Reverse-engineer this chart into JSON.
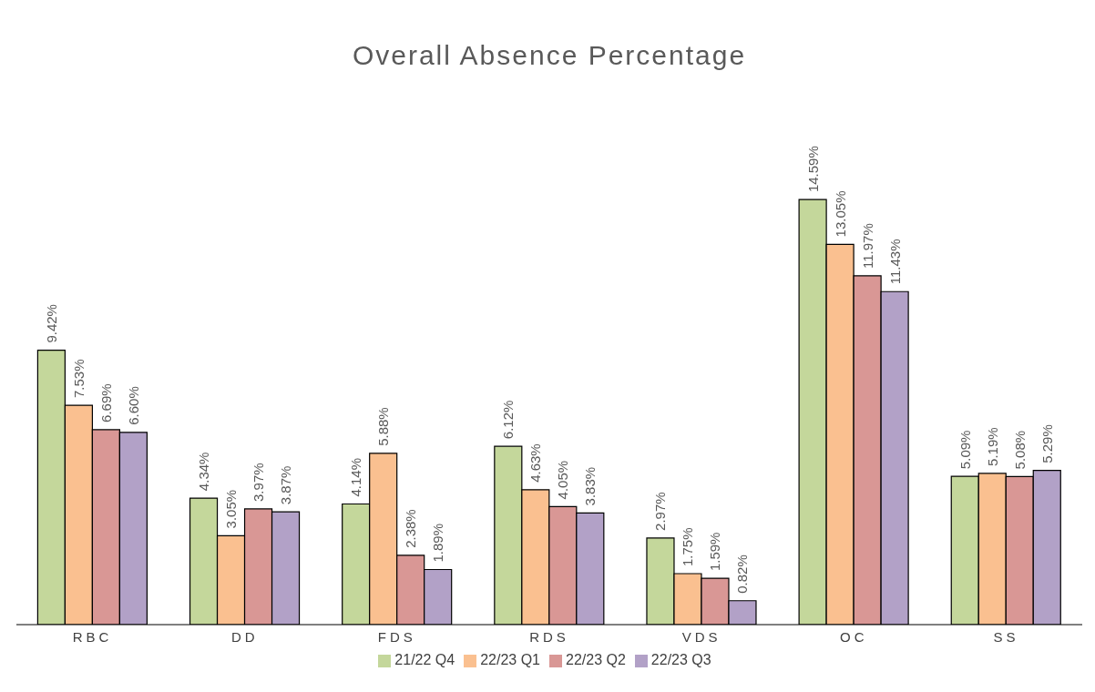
{
  "chart_data": {
    "type": "bar",
    "title": "Overall Absence Percentage",
    "categories": [
      "RBC",
      "DD",
      "FDS",
      "RDS",
      "VDS",
      "OC",
      "SS"
    ],
    "legend": "bottom",
    "grid": false,
    "series": [
      {
        "name": "21/22 Q4",
        "color": "#c4d79b",
        "values": [
          9.42,
          4.34,
          4.14,
          6.12,
          2.97,
          14.59,
          5.09
        ],
        "value_labels": [
          "9.42%",
          "4.34%",
          "4.14%",
          "6.12%",
          "2.97%",
          "14.59%",
          "5.09%"
        ]
      },
      {
        "name": "22/23 Q1",
        "color": "#fac090",
        "values": [
          7.53,
          3.05,
          5.88,
          4.63,
          1.75,
          13.05,
          5.19
        ],
        "value_labels": [
          "7.53%",
          "3.05%",
          "5.88%",
          "4.63%",
          "1.75%",
          "13.05%",
          "5.19%"
        ]
      },
      {
        "name": "22/23 Q2",
        "color": "#d99795",
        "values": [
          6.69,
          3.97,
          2.38,
          4.05,
          1.59,
          11.97,
          5.08
        ],
        "value_labels": [
          "6.69%",
          "3.97%",
          "2.38%",
          "4.05%",
          "1.59%",
          "11.97%",
          "5.08%"
        ]
      },
      {
        "name": "22/23 Q3",
        "color": "#b2a1c7",
        "values": [
          6.6,
          3.87,
          1.89,
          3.83,
          0.82,
          11.43,
          5.29
        ],
        "value_labels": [
          "6.60%",
          "3.87%",
          "1.89%",
          "3.83%",
          "0.82%",
          "11.43%",
          "5.29%"
        ]
      }
    ]
  }
}
